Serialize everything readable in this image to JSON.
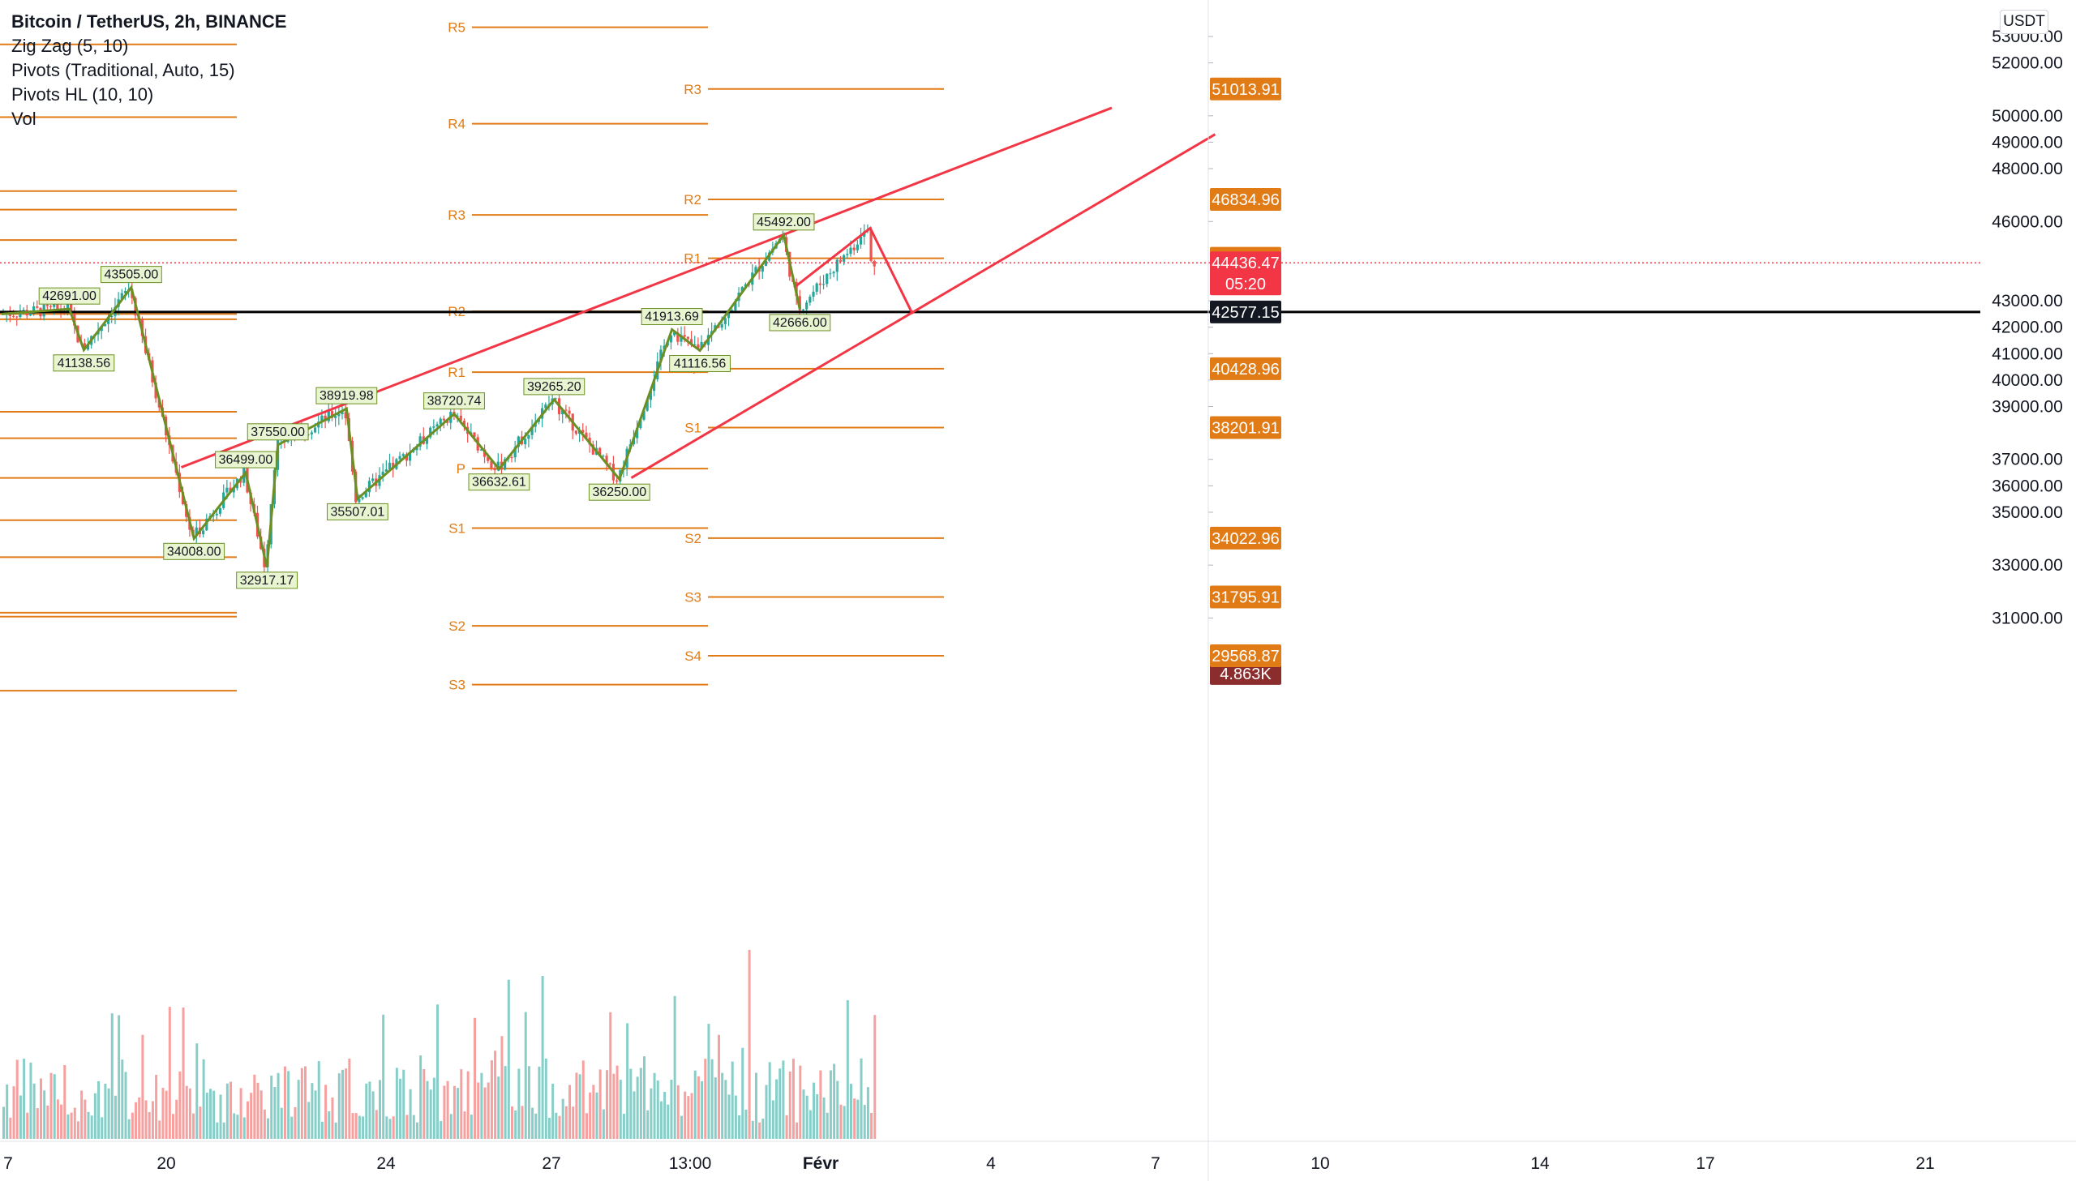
{
  "legend": {
    "title": "Bitcoin / TetherUS, 2h, BINANCE",
    "indicators": [
      "Zig Zag (5, 10)",
      "Pivots (Traditional, Auto, 15)",
      "Pivots HL (10, 10)",
      "Vol"
    ]
  },
  "currency_button": "USDT",
  "price_axis": {
    "top_clipped_label": "5",
    "ticks": [
      "53000.00",
      "52000.00",
      "50000.00",
      "49000.00",
      "48000.00",
      "46000.00",
      "43000.00",
      "42000.00",
      "41000.00",
      "40000.00",
      "39000.00",
      "37000.00",
      "36000.00",
      "35000.00",
      "33000.00",
      "31000.00"
    ],
    "tick_values": [
      53000,
      52000,
      50000,
      49000,
      48000,
      46000,
      43000,
      42000,
      41000,
      40000,
      39000,
      37000,
      36000,
      35000,
      33000,
      31000
    ],
    "partially_hidden_ticks": [
      47000,
      38000,
      32000,
      30000,
      29000,
      44000,
      45000
    ]
  },
  "price_tags": [
    {
      "label": "51013.91",
      "value": 51013.91,
      "color": "#e07b16"
    },
    {
      "label": "46834.96",
      "value": 46834.96,
      "color": "#e07b16"
    },
    {
      "label": "44607.91",
      "value": 44607.91,
      "color": "#e07b16"
    },
    {
      "label": "44436.47",
      "sub": "05:20",
      "value": 44436.47,
      "color": "#f23645"
    },
    {
      "label": "42577.15",
      "value": 42577.15,
      "color": "#131722"
    },
    {
      "label": "40428.96",
      "value": 40428.96,
      "color": "#e07b16"
    },
    {
      "label": "38201.91",
      "value": 38201.91,
      "color": "#e07b16"
    },
    {
      "label": "34022.96",
      "value": 34022.96,
      "color": "#e07b16"
    },
    {
      "label": "31795.91",
      "value": 31795.91,
      "color": "#e07b16"
    },
    {
      "label": "4.863K",
      "value": 28900,
      "color": "#8b2d2d"
    },
    {
      "label": "29568.87",
      "value": 29568.87,
      "color": "#e07b16"
    }
  ],
  "time_axis": {
    "labels": [
      "7",
      "20",
      "24",
      "27",
      "13:00",
      "Févr",
      "4",
      "7",
      "10",
      "14",
      "17",
      "21"
    ],
    "bold": [
      false,
      false,
      false,
      false,
      false,
      true,
      false,
      false,
      false,
      false,
      false,
      false
    ]
  },
  "chart_data": {
    "type": "candlestick",
    "symbol": "Bitcoin / TetherUS",
    "interval": "2h",
    "exchange": "BINANCE",
    "ylim": [
      28200,
      54300
    ],
    "current_price": 44436.47,
    "countdown": "05:20",
    "horizontal_line": 42577.15,
    "zigzag": [
      {
        "bar": 0,
        "value": 42500
      },
      {
        "bar": 80,
        "value": 42691.0,
        "label": "42691.00"
      },
      {
        "bar": 97,
        "value": 41138.56,
        "label": "41138.56"
      },
      {
        "bar": 153,
        "value": 43505.0,
        "label": "43505.00"
      },
      {
        "bar": 227,
        "value": 34008.0,
        "label": "34008.00"
      },
      {
        "bar": 288,
        "value": 36499.0,
        "label": "36499.00"
      },
      {
        "bar": 313,
        "value": 32917.17,
        "label": "32917.17"
      },
      {
        "bar": 326,
        "value": 37550.0,
        "label": "37550.00"
      },
      {
        "bar": 407,
        "value": 38919.98,
        "label": "38919.98"
      },
      {
        "bar": 420,
        "value": 35507.01,
        "label": "35507.01"
      },
      {
        "bar": 534,
        "value": 38720.74,
        "label": "38720.74"
      },
      {
        "bar": 587,
        "value": 36632.61,
        "label": "36632.61"
      },
      {
        "bar": 652,
        "value": 39265.2,
        "label": "39265.20"
      },
      {
        "bar": 729,
        "value": 36250.0,
        "label": "36250.00"
      },
      {
        "bar": 791,
        "value": 41913.69,
        "label": "41913.69"
      },
      {
        "bar": 824,
        "value": 41116.56,
        "label": "41116.56"
      },
      {
        "bar": 923,
        "value": 45492.0,
        "label": "45492.00"
      },
      {
        "bar": 942,
        "value": 42666.0,
        "label": "42666.00"
      }
    ],
    "pivot_sets": [
      {
        "levels": [
          {
            "name": "R3",
            "value": 49950
          },
          {
            "name": "R2",
            "value": 46450
          },
          {
            "name": "R1",
            "value": 42300
          },
          {
            "name": "P",
            "value": 38800
          },
          {
            "name": "S1",
            "value": 34700
          },
          {
            "name": "S2",
            "value": 31200
          },
          {
            "name": "S3",
            "value": 28250
          },
          {
            "name": "",
            "value": 52700
          },
          {
            "name": "",
            "value": 47150
          },
          {
            "name": "",
            "value": 45300
          },
          {
            "name": "",
            "value": 42500
          },
          {
            "name": "",
            "value": 37800
          },
          {
            "name": "",
            "value": 36300
          },
          {
            "name": "",
            "value": 33300
          },
          {
            "name": "",
            "value": 31050
          }
        ]
      },
      {
        "levels": [
          {
            "name": "R5",
            "value": 53350
          },
          {
            "name": "R4",
            "value": 49700
          },
          {
            "name": "R3",
            "value": 46250
          },
          {
            "name": "R2",
            "value": 42600
          },
          {
            "name": "R1",
            "value": 40300
          },
          {
            "name": "P",
            "value": 36650
          },
          {
            "name": "S1",
            "value": 34400
          },
          {
            "name": "S2",
            "value": 30700
          },
          {
            "name": "S3",
            "value": 28480
          }
        ]
      },
      {
        "levels": [
          {
            "name": "R3",
            "value": 51013.91
          },
          {
            "name": "R2",
            "value": 46834.96
          },
          {
            "name": "R1",
            "value": 44607.91
          },
          {
            "name": "P",
            "value": 40428.96
          },
          {
            "name": "S1",
            "value": 38201.91
          },
          {
            "name": "S2",
            "value": 34022.96
          },
          {
            "name": "S3",
            "value": 31795.91
          },
          {
            "name": "S4",
            "value": 29568.87
          }
        ]
      }
    ],
    "trendlines": [
      {
        "from": {
          "bar": 212,
          "value": 36700
        },
        "to": {
          "bar": 1310,
          "value": 50300
        }
      },
      {
        "from": {
          "bar": 743,
          "value": 36300
        },
        "to": {
          "bar": 1432,
          "value": 49300
        }
      },
      {
        "points": [
          {
            "bar": 935,
            "value": 43500
          },
          {
            "bar": 1025,
            "value": 45750
          },
          {
            "bar": 1075,
            "value": 42500
          }
        ]
      }
    ],
    "volume_max_label": "4.863K"
  }
}
